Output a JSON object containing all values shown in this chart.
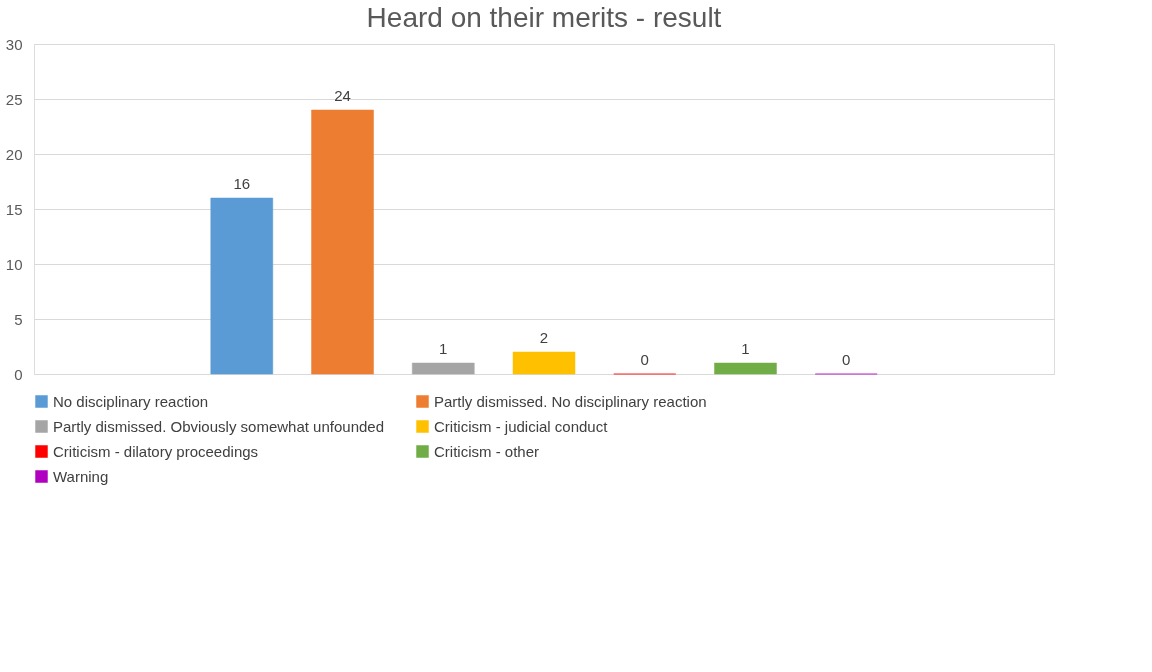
{
  "chart_data": {
    "type": "bar",
    "title": "Heard on their merits - result",
    "categories": [
      null
    ],
    "series": [
      {
        "name": "No disciplinary reaction",
        "color": "#5b9bd5",
        "values": [
          16
        ]
      },
      {
        "name": "Partly dismissed. No disciplinary reaction",
        "color": "#ed7d31",
        "values": [
          24
        ]
      },
      {
        "name": "Partly dismissed. Obviously somewhat unfounded",
        "color": "#a5a5a5",
        "values": [
          1
        ]
      },
      {
        "name": "Criticism - judicial conduct",
        "color": "#ffc000",
        "values": [
          2
        ]
      },
      {
        "name": "Criticism - dilatory proceedings",
        "color": "#ff0000",
        "values": [
          0
        ]
      },
      {
        "name": "Criticism - other",
        "color": "#70ad47",
        "values": [
          1
        ]
      },
      {
        "name": "Warning",
        "color": "#b000c0",
        "values": [
          0
        ]
      }
    ],
    "ylim": [
      0,
      30
    ],
    "yticks": [
      0,
      5,
      10,
      15,
      20,
      25,
      30
    ],
    "grid": "y",
    "legend": "bottom",
    "data_labels": true
  }
}
